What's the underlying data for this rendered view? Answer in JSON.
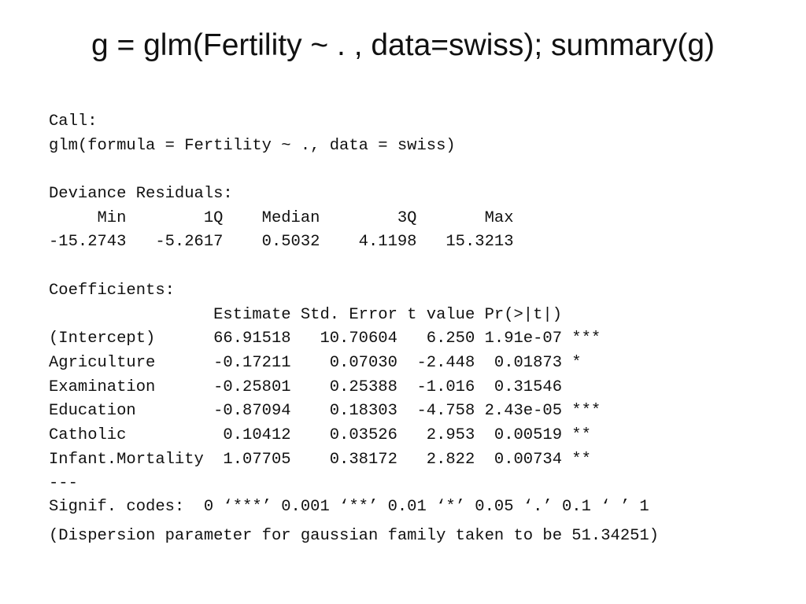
{
  "slide": {
    "title": "g = glm(Fertility ~ . , data=swiss); summary(g)"
  },
  "output": {
    "call_label": "Call:",
    "call_text": "glm(formula = Fertility ~ ., data = swiss)",
    "deviance_label": "Deviance Residuals:",
    "deviance_header": "     Min        1Q    Median        3Q       Max  ",
    "deviance_values": "-15.2743   -5.2617    0.5032    4.1198   15.3213  ",
    "coefficients_label": "Coefficients:",
    "coef_header": "                 Estimate Std. Error t value Pr(>|t|)    ",
    "coef_rows": [
      "(Intercept)      66.91518   10.70604   6.250 1.91e-07 ***",
      "Agriculture      -0.17211    0.07030  -2.448  0.01873 *  ",
      "Examination      -0.25801    0.25388  -1.016  0.31546    ",
      "Education        -0.87094    0.18303  -4.758 2.43e-05 ***",
      "Catholic          0.10412    0.03526   2.953  0.00519 ** ",
      "Infant.Mortality  1.07705    0.38172   2.822  0.00734 ** "
    ],
    "separator": "---",
    "signif_codes": "Signif. codes:  0 ‘***’ 0.001 ‘**’ 0.01 ‘*’ 0.05 ‘.’ 0.1 ‘ ’ 1",
    "dispersion": "(Dispersion parameter for gaussian family taken to be 51.34251)"
  }
}
